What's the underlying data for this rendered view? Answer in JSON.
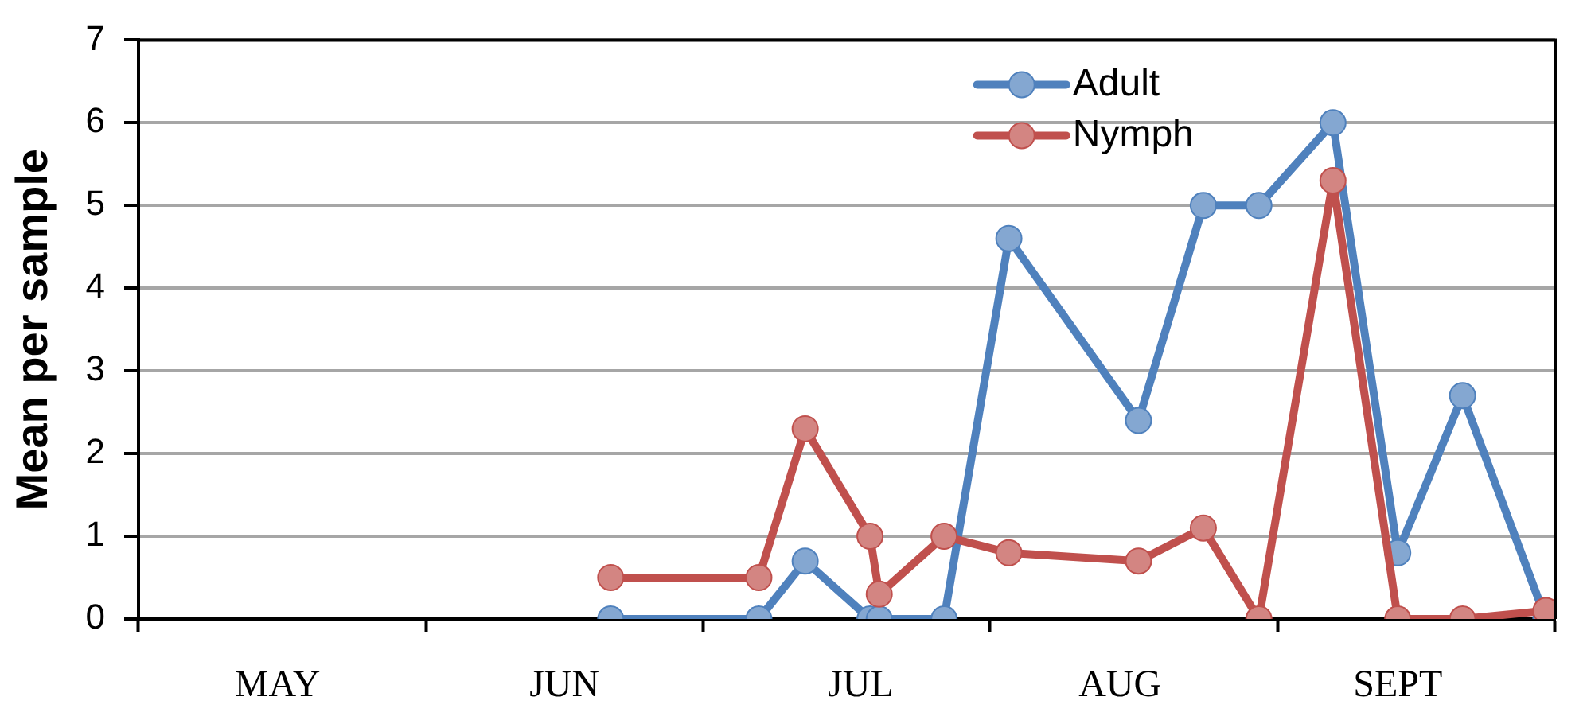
{
  "chart_data": {
    "type": "line",
    "x": [
      "--06-21",
      "--07-07",
      "--07-12",
      "--07-19",
      "--07-20",
      "--07-27",
      "--08-03",
      "--08-17",
      "--08-24",
      "--08-30",
      "--09-07",
      "--09-14",
      "--09-21",
      "--09-30"
    ],
    "xlim": [
      "--05-01",
      "--10-01"
    ],
    "xticks": [
      {
        "value": "--05-01",
        "label": null
      },
      {
        "value": "--05-16",
        "label": "MAY"
      },
      {
        "value": "--06-01",
        "label": null
      },
      {
        "value": "--06-16",
        "label": "JUN"
      },
      {
        "value": "--07-01",
        "label": null
      },
      {
        "value": "--07-18",
        "label": "JUL"
      },
      {
        "value": "--08-01",
        "label": null
      },
      {
        "value": "--08-15",
        "label": "AUG"
      },
      {
        "value": "--09-01",
        "label": null
      },
      {
        "value": "--09-14",
        "label": "SEPT"
      },
      {
        "value": "--10-01",
        "label": null
      }
    ],
    "ylim": [
      0,
      7
    ],
    "yticks": [
      0,
      1,
      2,
      3,
      4,
      5,
      6,
      7
    ],
    "ylabel": "Mean per sample",
    "grid": "y",
    "legend": "top right",
    "marker": "circle",
    "line_style": "solid",
    "series": [
      {
        "name": "Adult",
        "color": "#4f81bd",
        "values": [
          0,
          0,
          0.7,
          0,
          0,
          0,
          4.6,
          2.4,
          5,
          5,
          6,
          0.8,
          2.7,
          0
        ]
      },
      {
        "name": "Nymph",
        "color": "#c0504d",
        "values": [
          0.5,
          0.5,
          2.3,
          1,
          0.3,
          1,
          0.8,
          0.7,
          1.1,
          0,
          5.3,
          0,
          0,
          0.1
        ]
      }
    ]
  }
}
